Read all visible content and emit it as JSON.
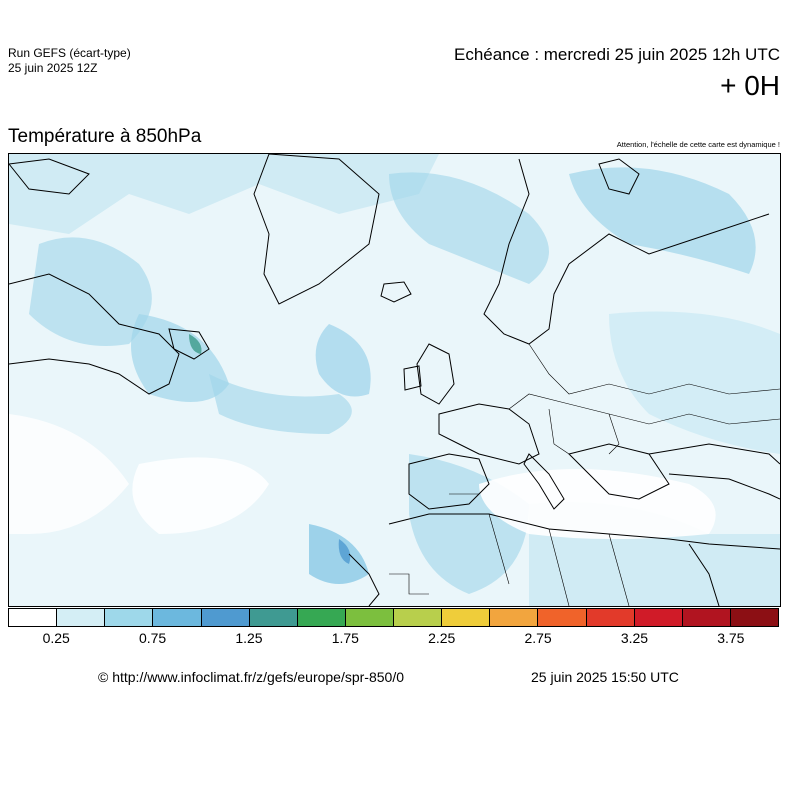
{
  "header": {
    "run_title": "Run GEFS (écart-type)",
    "run_date": "25 juin 2025 12Z",
    "echeance": "Echéance : mercredi 25 juin 2025 12h UTC",
    "offset": "+ 0H"
  },
  "map": {
    "title": "Température à 850hPa",
    "warning": "Attention, l'échelle de cette carte est dynamique !",
    "colors": {
      "sea_base": "#eaf6fa",
      "low": "#c9e9f3",
      "mid": "#9fd6ea",
      "high": "#7cc3e3",
      "peak": "#5aa3d3",
      "accent": "#3c9a8a",
      "land_blank": "#ffffff",
      "outline": "#000000"
    }
  },
  "colorbar": {
    "colors": [
      "#ffffff",
      "#d4eef5",
      "#9ed8ea",
      "#6cb8de",
      "#4f9ad0",
      "#3f9a92",
      "#36a853",
      "#7cbf3e",
      "#b8cf4c",
      "#efcd3a",
      "#f2a53e",
      "#f0632a",
      "#e23a2a",
      "#d01b28",
      "#b11420",
      "#8c0f14"
    ],
    "tick_labels": [
      "0.25",
      "0.75",
      "1.25",
      "1.75",
      "2.25",
      "2.75",
      "3.25",
      "3.75"
    ]
  },
  "footer": {
    "copyright": "© http://www.infoclimat.fr/z/gefs/europe/spr-850/0",
    "generated": "25 juin 2025 15:50 UTC"
  }
}
